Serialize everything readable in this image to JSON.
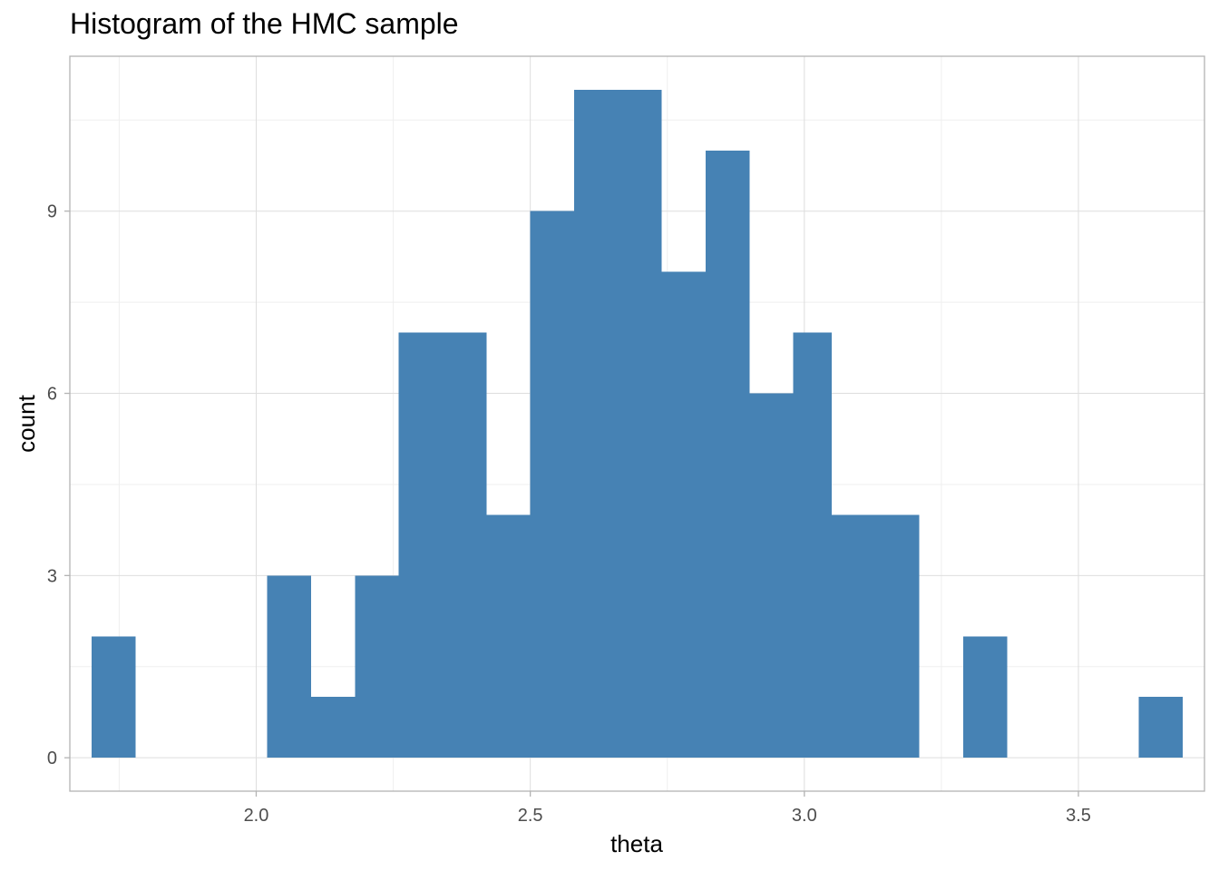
{
  "chart_data": {
    "type": "bar",
    "title": "Histogram of the HMC sample",
    "xlabel": "theta",
    "ylabel": "count",
    "bin_width": 0.079,
    "bins": [
      {
        "x_start": 1.7,
        "x_end": 1.78,
        "count": 2
      },
      {
        "x_start": 1.78,
        "x_end": 1.86,
        "count": 0
      },
      {
        "x_start": 1.86,
        "x_end": 1.94,
        "count": 0
      },
      {
        "x_start": 1.94,
        "x_end": 2.02,
        "count": 0
      },
      {
        "x_start": 2.02,
        "x_end": 2.1,
        "count": 3
      },
      {
        "x_start": 2.1,
        "x_end": 2.18,
        "count": 1
      },
      {
        "x_start": 2.18,
        "x_end": 2.26,
        "count": 3
      },
      {
        "x_start": 2.26,
        "x_end": 2.34,
        "count": 7
      },
      {
        "x_start": 2.34,
        "x_end": 2.42,
        "count": 7
      },
      {
        "x_start": 2.42,
        "x_end": 2.5,
        "count": 4
      },
      {
        "x_start": 2.5,
        "x_end": 2.58,
        "count": 9
      },
      {
        "x_start": 2.58,
        "x_end": 2.66,
        "count": 11
      },
      {
        "x_start": 2.66,
        "x_end": 2.74,
        "count": 11
      },
      {
        "x_start": 2.74,
        "x_end": 2.82,
        "count": 8
      },
      {
        "x_start": 2.82,
        "x_end": 2.9,
        "count": 10
      },
      {
        "x_start": 2.9,
        "x_end": 2.98,
        "count": 6
      },
      {
        "x_start": 2.98,
        "x_end": 3.05,
        "count": 7
      },
      {
        "x_start": 3.05,
        "x_end": 3.13,
        "count": 4
      },
      {
        "x_start": 3.13,
        "x_end": 3.21,
        "count": 4
      },
      {
        "x_start": 3.21,
        "x_end": 3.29,
        "count": 0
      },
      {
        "x_start": 3.29,
        "x_end": 3.37,
        "count": 2
      },
      {
        "x_start": 3.37,
        "x_end": 3.45,
        "count": 0
      },
      {
        "x_start": 3.45,
        "x_end": 3.53,
        "count": 0
      },
      {
        "x_start": 3.53,
        "x_end": 3.61,
        "count": 0
      },
      {
        "x_start": 3.61,
        "x_end": 3.69,
        "count": 1
      }
    ],
    "xlim": [
      1.66,
      3.73
    ],
    "ylim": [
      -0.55,
      11.55
    ],
    "x_ticks": [
      {
        "value": 2.0,
        "label": "2.0"
      },
      {
        "value": 2.5,
        "label": "2.5"
      },
      {
        "value": 3.0,
        "label": "3.0"
      },
      {
        "value": 3.5,
        "label": "3.5"
      }
    ],
    "y_ticks": [
      {
        "value": 0,
        "label": "0"
      },
      {
        "value": 3,
        "label": "3"
      },
      {
        "value": 6,
        "label": "6"
      },
      {
        "value": 9,
        "label": "9"
      }
    ],
    "x_minor_gridlines": [
      1.75,
      2.25,
      2.75,
      3.25,
      3.75
    ],
    "y_minor_gridlines": [
      1.5,
      4.5,
      7.5,
      10.5
    ],
    "grid": true,
    "legend": "none",
    "colors": {
      "bar_fill": "#4682b4",
      "grid_major": "#dedede",
      "grid_minor": "#efefef",
      "panel_border": "#b3b3b3",
      "tick_text": "#4d4d4d"
    }
  }
}
